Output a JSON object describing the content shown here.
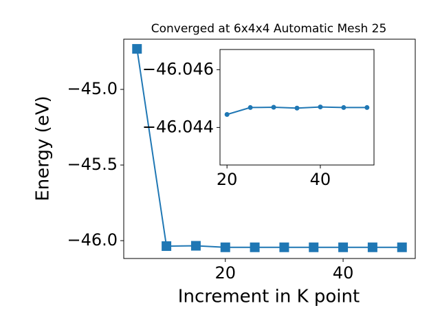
{
  "chart_data": [
    {
      "type": "line",
      "title": "Converged at 6x4x4 Automatic Mesh 25",
      "x_label": "Increment in K point",
      "y_label": "Energy (eV)",
      "x": [
        5,
        10,
        15,
        20,
        25,
        30,
        35,
        40,
        45,
        50
      ],
      "series": [
        {
          "color": "#1f77b4",
          "marker": "square",
          "values": [
            -44.732,
            -46.036,
            -46.034,
            -46.044,
            -46.044,
            -46.044,
            -46.044,
            -46.044,
            -46.044,
            -46.044
          ]
        }
      ],
      "xlim": [
        2.75,
        52.25
      ],
      "ylim": [
        -46.118,
        -44.668
      ],
      "xticks": [
        20,
        40
      ],
      "yticks": [
        {
          "value": -45.0,
          "label": "−45.0"
        },
        {
          "value": -45.5,
          "label": "−45.5"
        },
        {
          "value": -46.0,
          "label": "−46.0"
        }
      ]
    },
    {
      "type": "line",
      "x": [
        20,
        25,
        30,
        35,
        40,
        45,
        50
      ],
      "series": [
        {
          "color": "#1f77b4",
          "marker": "circle",
          "values": [
            -46.04445,
            -46.04469,
            -46.0447,
            -46.04467,
            -46.04471,
            -46.04469,
            -46.04469
          ]
        }
      ],
      "xlim": [
        18.5,
        51.5
      ],
      "ylim": [
        -46.0427,
        -46.0467
      ],
      "xticks": [
        20,
        40
      ],
      "yticks": [
        {
          "value": -46.046,
          "label": "−46.046"
        },
        {
          "value": -46.044,
          "label": "−46.044"
        }
      ]
    }
  ]
}
